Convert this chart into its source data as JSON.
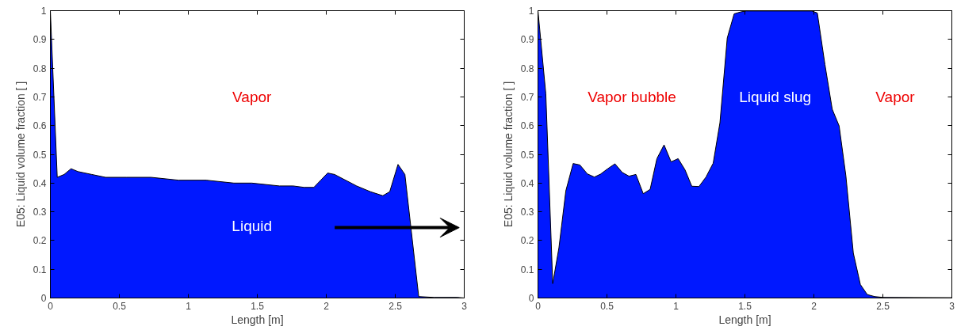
{
  "chart_data": [
    {
      "type": "area",
      "xlabel": "Length [m]",
      "ylabel": "E05: Liquid volume fraction [ ]",
      "xlim": [
        0,
        3
      ],
      "ylim": [
        0,
        1
      ],
      "xticks": [
        0,
        0.5,
        1,
        1.5,
        2,
        2.5,
        3
      ],
      "yticks": [
        0,
        0.1,
        0.2,
        0.3,
        0.4,
        0.5,
        0.6,
        0.7,
        0.8,
        0.9,
        1
      ],
      "grid": false,
      "annotations": [
        "Vapor",
        "Liquid"
      ],
      "series": [
        {
          "color": "#0018ff",
          "x": [
            0,
            0.05,
            0.1,
            0.15,
            0.2,
            0.3,
            0.4,
            0.55,
            0.73,
            0.93,
            1.13,
            1.33,
            1.46,
            1.66,
            1.76,
            1.84,
            1.91,
            1.96,
            2.01,
            2.06,
            2.22,
            2.32,
            2.41,
            2.46,
            2.52,
            2.57,
            2.67,
            2.78,
            2.95,
            3
          ],
          "values": [
            1,
            0.42,
            0.43,
            0.45,
            0.44,
            0.43,
            0.42,
            0.42,
            0.42,
            0.41,
            0.41,
            0.4,
            0.4,
            0.39,
            0.39,
            0.385,
            0.385,
            0.41,
            0.435,
            0.43,
            0.39,
            0.37,
            0.356,
            0.37,
            0.465,
            0.43,
            0.005,
            0.002,
            0.002,
            0
          ]
        }
      ]
    },
    {
      "type": "area",
      "xlabel": "Length [m]",
      "ylabel": "E05: Liquid volume fraction [ ]",
      "xlim": [
        0,
        3
      ],
      "ylim": [
        0,
        1
      ],
      "xticks": [
        0,
        0.5,
        1,
        1.5,
        2,
        2.5,
        3
      ],
      "yticks": [
        0,
        0.1,
        0.2,
        0.3,
        0.4,
        0.5,
        0.6,
        0.7,
        0.8,
        0.9,
        1
      ],
      "grid": false,
      "annotations": [
        "Vapor bubble",
        "Liquid slug",
        "Vapor"
      ],
      "series": [
        {
          "color": "#0018ff",
          "x": [
            0,
            0.057,
            0.107,
            0.152,
            0.202,
            0.255,
            0.304,
            0.358,
            0.409,
            0.453,
            0.506,
            0.558,
            0.611,
            0.66,
            0.71,
            0.763,
            0.813,
            0.862,
            0.914,
            0.965,
            1.016,
            1.066,
            1.115,
            1.167,
            1.218,
            1.27,
            1.319,
            1.372,
            1.422,
            1.471,
            1.511,
            1.985,
            2.025,
            2.08,
            2.133,
            2.183,
            2.232,
            2.286,
            2.337,
            2.387,
            2.44,
            2.5,
            3
          ],
          "values": [
            1,
            0.71,
            0.05,
            0.175,
            0.373,
            0.468,
            0.463,
            0.432,
            0.421,
            0.431,
            0.45,
            0.467,
            0.437,
            0.424,
            0.43,
            0.363,
            0.378,
            0.485,
            0.533,
            0.474,
            0.485,
            0.446,
            0.389,
            0.388,
            0.421,
            0.469,
            0.61,
            0.905,
            0.989,
            0.996,
            0.999,
            0.999,
            0.992,
            0.813,
            0.657,
            0.599,
            0.425,
            0.156,
            0.047,
            0.012,
            0.005,
            0.002,
            0.001
          ]
        }
      ]
    }
  ]
}
